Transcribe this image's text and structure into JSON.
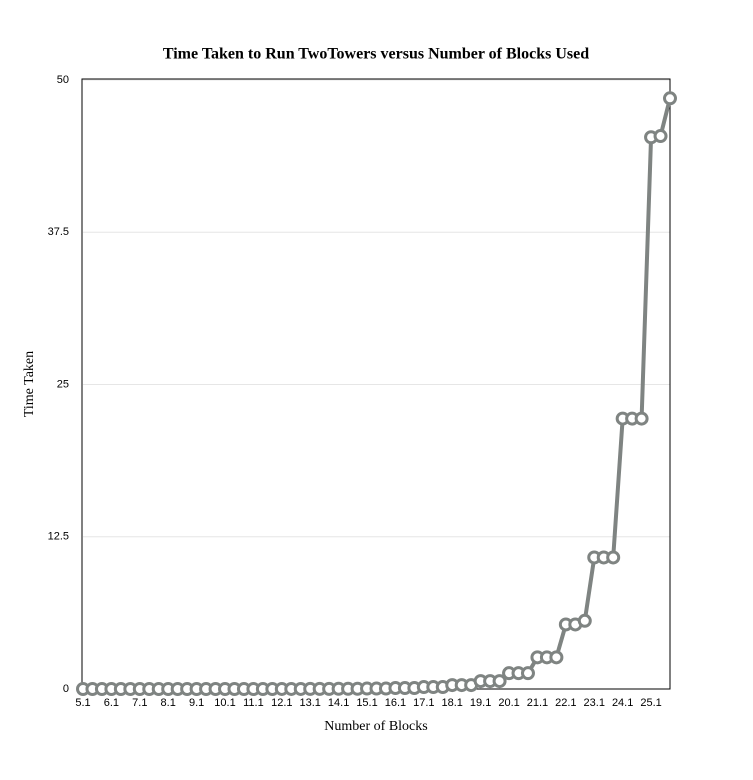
{
  "chart_data": {
    "type": "line",
    "title": "Time Taken to Run TwoTowers versus Number of Blocks Used",
    "x_label": "Number of Blocks",
    "y_label": "Time Taken",
    "categories": [
      "5.1",
      null,
      null,
      "6.1",
      null,
      null,
      "7.1",
      null,
      null,
      "8.1",
      null,
      null,
      "9.1",
      null,
      null,
      "10.1",
      null,
      null,
      "11.1",
      null,
      null,
      "12.1",
      null,
      null,
      "13.1",
      null,
      null,
      "14.1",
      null,
      null,
      "15.1",
      null,
      null,
      "16.1",
      null,
      null,
      "17.1",
      null,
      null,
      "18.1",
      null,
      null,
      "19.1",
      null,
      null,
      "20.1",
      null,
      null,
      "21.1",
      null,
      null,
      "22.1",
      null,
      null,
      "23.1",
      null,
      null,
      "24.1",
      null,
      null,
      "25.1",
      null,
      null
    ],
    "series": [
      {
        "name": "Time Taken",
        "color": "#7f8482",
        "values": [
          0,
          0,
          0,
          0,
          0,
          0,
          0,
          0,
          0,
          0,
          0,
          0,
          0,
          0,
          0,
          0,
          0,
          0,
          0,
          0,
          0,
          0.005,
          0.005,
          0.005,
          0.01,
          0.01,
          0.01,
          0.02,
          0.02,
          0.02,
          0.04,
          0.04,
          0.04,
          0.08,
          0.08,
          0.08,
          0.16,
          0.16,
          0.16,
          0.32,
          0.32,
          0.32,
          0.65,
          0.65,
          0.65,
          1.3,
          1.3,
          1.3,
          2.6,
          2.6,
          2.6,
          5.3,
          5.3,
          5.6,
          10.8,
          10.8,
          10.8,
          22.2,
          22.2,
          22.2,
          45.3,
          45.4,
          48.5
        ]
      }
    ],
    "ylim": [
      0,
      50
    ],
    "yticks": [
      0,
      12.5,
      25,
      37.5,
      50
    ],
    "grid": true
  }
}
